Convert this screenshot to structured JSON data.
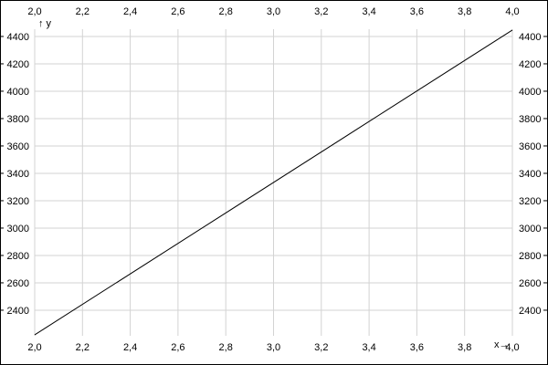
{
  "chart_data": {
    "type": "line",
    "title": "",
    "xlabel": "x→",
    "ylabel": "↑ y",
    "xlim": [
      2.0,
      4.0
    ],
    "ylim": [
      2213,
      4453
    ],
    "xticks": [
      "2,0",
      "2,2",
      "2,4",
      "2,6",
      "2,8",
      "3,0",
      "3,2",
      "3,4",
      "3,6",
      "3,8",
      "4,0"
    ],
    "xtick_values": [
      2.0,
      2.2,
      2.4,
      2.6,
      2.8,
      3.0,
      3.2,
      3.4,
      3.6,
      3.8,
      4.0
    ],
    "yticks": [
      "2400",
      "2600",
      "2800",
      "3000",
      "3200",
      "3400",
      "3600",
      "3800",
      "4000",
      "4200",
      "4400"
    ],
    "ytick_values": [
      2400,
      2600,
      2800,
      3000,
      3200,
      3400,
      3600,
      3800,
      4000,
      4200,
      4400
    ],
    "grid": true,
    "series": [
      {
        "x": [
          2.0,
          4.0
        ],
        "y": [
          2220,
          4447
        ],
        "color": "#000000"
      }
    ],
    "colors": {
      "grid": "#d3d3d3",
      "line": "#000000"
    }
  }
}
